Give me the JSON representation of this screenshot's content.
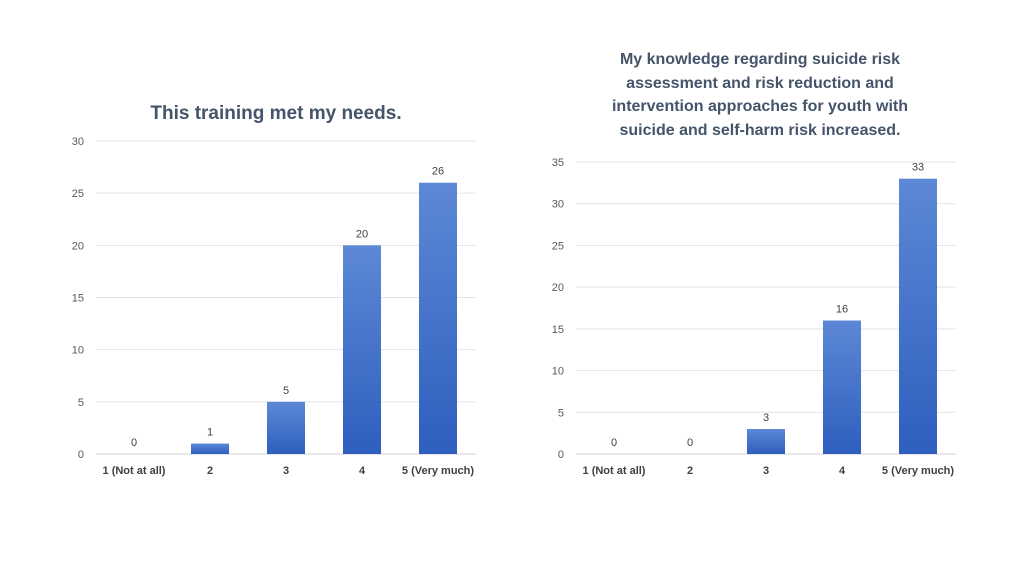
{
  "chart_data": [
    {
      "type": "bar",
      "title": "This training met my needs.",
      "categories": [
        "1 (Not at all)",
        "2",
        "3",
        "4",
        "5 (Very much)"
      ],
      "values": [
        0,
        1,
        5,
        20,
        26
      ],
      "ylim": [
        0,
        30
      ],
      "yticks": [
        0,
        5,
        10,
        15,
        20,
        25,
        30
      ],
      "grid": true,
      "bar_color": "#4472c4"
    },
    {
      "type": "bar",
      "title": "My knowledge regarding suicide risk assessment and risk reduction and intervention approaches for youth with suicide and self-harm risk increased.",
      "categories": [
        "1 (Not at all)",
        "2",
        "3",
        "4",
        "5 (Very much)"
      ],
      "values": [
        0,
        0,
        3,
        16,
        33
      ],
      "ylim": [
        0,
        35
      ],
      "yticks": [
        0,
        5,
        10,
        15,
        20,
        25,
        30,
        35
      ],
      "grid": true,
      "bar_color": "#4472c4"
    }
  ]
}
